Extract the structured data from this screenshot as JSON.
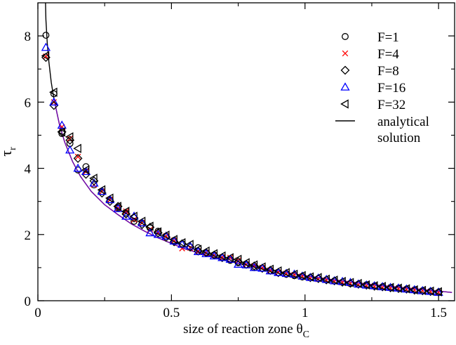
{
  "chart_data": {
    "type": "scatter",
    "title": "",
    "xlabel": "size of reaction zone  θ",
    "xlabel_subscript": "C",
    "ylabel": "τ",
    "ylabel_subscript": "r",
    "xlim": [
      0,
      1.56
    ],
    "ylim": [
      0,
      9.0
    ],
    "x_ticks": [
      0,
      0.5,
      1,
      1.5
    ],
    "x_tick_labels": [
      "0",
      "0.5",
      "1",
      "1.5"
    ],
    "y_ticks": [
      0,
      2,
      4,
      6,
      8
    ],
    "y_tick_labels": [
      "0",
      "2",
      "4",
      "6",
      "8"
    ],
    "legend_position": "top-right",
    "series": [
      {
        "name": "F=1",
        "marker": "circle",
        "color": "#000000",
        "x": [
          0.03,
          0.06,
          0.09,
          0.12,
          0.15,
          0.18,
          0.21,
          0.24,
          0.27,
          0.3,
          0.33,
          0.36,
          0.39,
          0.42,
          0.45,
          0.48,
          0.51,
          0.54,
          0.57,
          0.6,
          0.63,
          0.66,
          0.69,
          0.72,
          0.75,
          0.78,
          0.81,
          0.84,
          0.87,
          0.9,
          0.93,
          0.96,
          0.99,
          1.02,
          1.05,
          1.08,
          1.11,
          1.14,
          1.17,
          1.2,
          1.23,
          1.26,
          1.29,
          1.32,
          1.35,
          1.38,
          1.41,
          1.44,
          1.47,
          1.5
        ],
        "y": [
          8.02,
          6.25,
          5.05,
          4.75,
          3.95,
          4.05,
          3.5,
          3.3,
          3.05,
          2.8,
          2.65,
          2.4,
          2.35,
          2.2,
          2.1,
          1.95,
          1.82,
          1.72,
          1.62,
          1.6,
          1.45,
          1.38,
          1.3,
          1.22,
          1.15,
          1.08,
          1.0,
          0.98,
          0.9,
          0.85,
          0.8,
          0.76,
          0.72,
          0.7,
          0.67,
          0.63,
          0.6,
          0.56,
          0.52,
          0.5,
          0.48,
          0.45,
          0.42,
          0.4,
          0.38,
          0.35,
          0.33,
          0.3,
          0.28,
          0.25
        ]
      },
      {
        "name": "F=4",
        "marker": "x",
        "color": "#ff0000",
        "x": [
          0.03,
          0.06,
          0.09,
          0.12,
          0.15,
          0.18,
          0.21,
          0.24,
          0.27,
          0.3,
          0.33,
          0.36,
          0.39,
          0.42,
          0.45,
          0.48,
          0.51,
          0.54,
          0.57,
          0.6,
          0.63,
          0.66,
          0.69,
          0.72,
          0.75,
          0.78,
          0.81,
          0.84,
          0.87,
          0.9,
          0.93,
          0.96,
          0.99,
          1.02,
          1.05,
          1.08,
          1.11,
          1.14,
          1.17,
          1.2,
          1.23,
          1.26,
          1.29,
          1.32,
          1.35,
          1.38,
          1.41,
          1.44,
          1.47,
          1.5
        ],
        "y": [
          7.38,
          6.0,
          5.25,
          4.9,
          4.35,
          3.9,
          3.5,
          3.3,
          3.05,
          2.8,
          2.7,
          2.45,
          2.35,
          2.15,
          2.05,
          1.95,
          1.82,
          1.58,
          1.6,
          1.5,
          1.45,
          1.38,
          1.32,
          1.3,
          1.22,
          1.1,
          1.05,
          1.0,
          0.92,
          0.86,
          0.82,
          0.78,
          0.74,
          0.68,
          0.65,
          0.62,
          0.58,
          0.55,
          0.52,
          0.48,
          0.45,
          0.43,
          0.4,
          0.38,
          0.36,
          0.34,
          0.32,
          0.3,
          0.27,
          0.25
        ]
      },
      {
        "name": "F=8",
        "marker": "diamond",
        "color": "#000000",
        "x": [
          0.03,
          0.06,
          0.09,
          0.12,
          0.15,
          0.18,
          0.21,
          0.24,
          0.27,
          0.3,
          0.33,
          0.36,
          0.39,
          0.42,
          0.45,
          0.48,
          0.51,
          0.54,
          0.57,
          0.6,
          0.63,
          0.66,
          0.69,
          0.72,
          0.75,
          0.78,
          0.81,
          0.84,
          0.87,
          0.9,
          0.93,
          0.96,
          0.99,
          1.02,
          1.05,
          1.08,
          1.11,
          1.14,
          1.17,
          1.2,
          1.23,
          1.26,
          1.29,
          1.32,
          1.35,
          1.38,
          1.41,
          1.44,
          1.47,
          1.5
        ],
        "y": [
          7.35,
          5.9,
          5.1,
          4.85,
          4.3,
          3.82,
          3.62,
          3.25,
          3.0,
          2.85,
          2.62,
          2.5,
          2.3,
          2.22,
          2.05,
          1.92,
          1.78,
          1.72,
          1.62,
          1.5,
          1.45,
          1.38,
          1.3,
          1.25,
          1.18,
          1.1,
          1.05,
          0.98,
          0.92,
          0.85,
          0.82,
          0.78,
          0.74,
          0.7,
          0.67,
          0.63,
          0.6,
          0.56,
          0.53,
          0.5,
          0.47,
          0.44,
          0.42,
          0.39,
          0.37,
          0.35,
          0.32,
          0.3,
          0.28,
          0.26
        ]
      },
      {
        "name": "F=16",
        "marker": "triangle-up",
        "color": "#0000ff",
        "x": [
          0.03,
          0.06,
          0.09,
          0.12,
          0.15,
          0.18,
          0.21,
          0.24,
          0.27,
          0.3,
          0.33,
          0.36,
          0.39,
          0.42,
          0.45,
          0.48,
          0.51,
          0.54,
          0.57,
          0.6,
          0.63,
          0.66,
          0.69,
          0.72,
          0.75,
          0.78,
          0.81,
          0.84,
          0.87,
          0.9,
          0.93,
          0.96,
          0.99,
          1.02,
          1.05,
          1.08,
          1.11,
          1.14,
          1.17,
          1.2,
          1.23,
          1.26,
          1.29,
          1.32,
          1.35,
          1.38,
          1.41,
          1.44,
          1.47,
          1.5
        ],
        "y": [
          7.65,
          6.0,
          5.3,
          4.55,
          4.0,
          3.9,
          3.55,
          3.3,
          3.05,
          2.78,
          2.55,
          2.55,
          2.35,
          2.05,
          2.0,
          1.95,
          1.8,
          1.7,
          1.65,
          1.48,
          1.42,
          1.35,
          1.3,
          1.25,
          1.1,
          1.08,
          1.0,
          0.98,
          0.9,
          0.85,
          0.82,
          0.8,
          0.74,
          0.7,
          0.68,
          0.64,
          0.6,
          0.58,
          0.55,
          0.5,
          0.47,
          0.45,
          0.42,
          0.4,
          0.38,
          0.35,
          0.33,
          0.3,
          0.28,
          0.25
        ]
      },
      {
        "name": "F=32",
        "marker": "triangle-left",
        "color": "#000000",
        "x": [
          0.03,
          0.06,
          0.09,
          0.12,
          0.15,
          0.18,
          0.21,
          0.24,
          0.27,
          0.3,
          0.33,
          0.36,
          0.39,
          0.42,
          0.45,
          0.48,
          0.51,
          0.54,
          0.57,
          0.6,
          0.63,
          0.66,
          0.69,
          0.72,
          0.75,
          0.78,
          0.81,
          0.84,
          0.87,
          0.9,
          0.93,
          0.96,
          0.99,
          1.02,
          1.05,
          1.08,
          1.11,
          1.14,
          1.17,
          1.2,
          1.23,
          1.26,
          1.29,
          1.32,
          1.35,
          1.38,
          1.41,
          1.44,
          1.47,
          1.5
        ],
        "y": [
          7.4,
          6.3,
          5.1,
          4.95,
          4.6,
          3.95,
          3.7,
          3.35,
          3.1,
          2.85,
          2.7,
          2.55,
          2.4,
          2.25,
          2.08,
          1.98,
          1.85,
          1.75,
          1.7,
          1.55,
          1.5,
          1.42,
          1.35,
          1.3,
          1.25,
          1.15,
          1.08,
          1.02,
          0.95,
          0.9,
          0.85,
          0.8,
          0.76,
          0.72,
          0.7,
          0.65,
          0.62,
          0.58,
          0.55,
          0.52,
          0.48,
          0.45,
          0.43,
          0.4,
          0.38,
          0.36,
          0.33,
          0.31,
          0.29,
          0.27
        ]
      },
      {
        "name": "analytical solution",
        "name_lines": [
          "analytical",
          "solution"
        ],
        "marker": "line",
        "color": "#000000",
        "x": [
          0.028,
          0.03,
          0.035,
          0.04,
          0.05,
          0.06,
          0.08,
          0.1,
          0.13,
          0.16,
          0.2,
          0.25,
          0.3,
          0.35,
          0.4,
          0.45,
          0.5,
          0.55,
          0.6,
          0.65,
          0.7,
          0.75,
          0.8,
          0.85,
          0.9,
          0.95,
          1.0,
          1.05,
          1.1,
          1.15,
          1.2,
          1.25,
          1.3,
          1.35,
          1.4,
          1.45,
          1.5,
          1.55
        ],
        "y": [
          9.2,
          8.5,
          7.8,
          7.3,
          6.6,
          6.1,
          5.35,
          4.8,
          4.2,
          3.75,
          3.3,
          2.9,
          2.6,
          2.32,
          2.1,
          1.9,
          1.73,
          1.57,
          1.45,
          1.33,
          1.22,
          1.13,
          1.04,
          0.96,
          0.89,
          0.82,
          0.76,
          0.7,
          0.64,
          0.59,
          0.54,
          0.49,
          0.45,
          0.41,
          0.37,
          0.33,
          0.29,
          0.25
        ]
      }
    ],
    "overlay_line": {
      "name": "",
      "color": "#8000c0",
      "x": [
        0.06,
        0.08,
        0.1,
        0.13,
        0.16,
        0.2,
        0.25,
        0.3,
        0.35,
        0.4,
        0.45,
        0.5,
        0.55,
        0.6,
        0.65,
        0.7,
        0.75,
        0.8,
        0.85,
        0.9,
        0.95,
        1.0,
        1.05,
        1.1,
        1.15,
        1.2,
        1.25,
        1.3,
        1.35,
        1.4,
        1.45,
        1.5,
        1.55
      ],
      "y": [
        6.1,
        5.35,
        4.8,
        4.2,
        3.75,
        3.3,
        2.9,
        2.6,
        2.32,
        2.1,
        1.9,
        1.73,
        1.57,
        1.45,
        1.33,
        1.22,
        1.13,
        1.04,
        0.96,
        0.89,
        0.82,
        0.76,
        0.7,
        0.64,
        0.59,
        0.54,
        0.49,
        0.45,
        0.41,
        0.37,
        0.33,
        0.29,
        0.25
      ]
    }
  }
}
